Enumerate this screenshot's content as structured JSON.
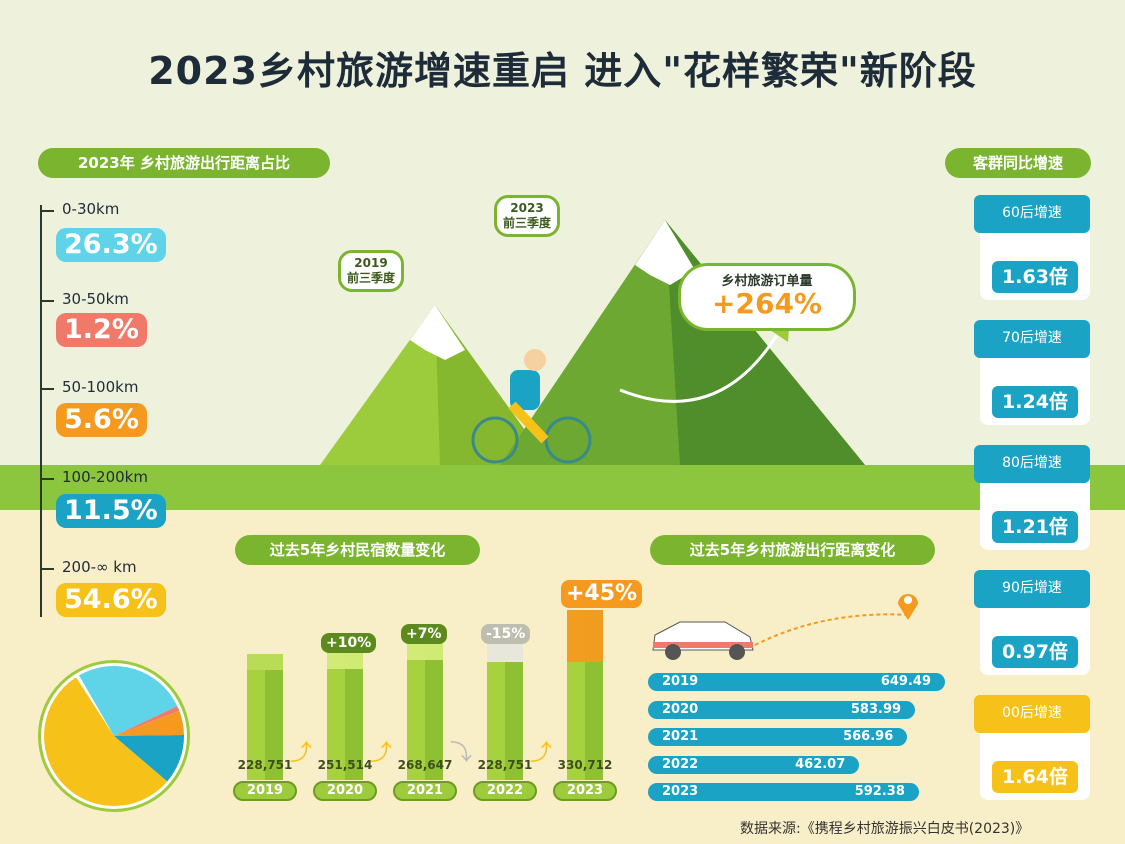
{
  "title": "2023乡村旅游增速重启  进入\"花样繁荣\"新阶段",
  "distance_share": {
    "label": "2023年 乡村旅游出行距离占比",
    "items": [
      {
        "range": "0-30km",
        "value": "26.3%",
        "pct": 26.3,
        "color": "#5fd3e8"
      },
      {
        "range": "30-50km",
        "value": "1.2%",
        "pct": 1.2,
        "color": "#f07a6a"
      },
      {
        "range": "50-100km",
        "value": "5.6%",
        "pct": 5.6,
        "color": "#f59a1e"
      },
      {
        "range": "100-200km",
        "value": "11.5%",
        "pct": 11.5,
        "color": "#1aa3c4"
      },
      {
        "range": "200-∞ km",
        "value": "54.6%",
        "pct": 54.6,
        "color": "#f6c21a"
      }
    ]
  },
  "illustration": {
    "c2019": [
      "2019",
      "前三季度"
    ],
    "c2023": [
      "2023",
      "前三季度"
    ],
    "order_label": "乡村旅游订单量",
    "order_value": "+264%"
  },
  "cohort": {
    "label": "客群同比增速",
    "items": [
      {
        "name": "60后增速",
        "value": "1.63倍",
        "color": "#1aa3c4"
      },
      {
        "name": "70后增速",
        "value": "1.24倍",
        "color": "#1aa3c4"
      },
      {
        "name": "80后增速",
        "value": "1.21倍",
        "color": "#1aa3c4"
      },
      {
        "name": "90后增速",
        "value": "0.97倍",
        "color": "#1aa3c4"
      },
      {
        "name": "00后增速",
        "value": "1.64倍",
        "color": "#f6c21a"
      }
    ]
  },
  "chart_data": [
    {
      "type": "bar",
      "title": "过去5年乡村民宿数量变化",
      "categories": [
        "2019",
        "2020",
        "2021",
        "2022",
        "2023"
      ],
      "values": [
        228751,
        251514,
        268647,
        228751,
        330712
      ],
      "labels": [
        "228,751",
        "251,514",
        "268,647",
        "228,751",
        "330,712"
      ],
      "changes": [
        "",
        "+10%",
        "+7%",
        "-15%",
        "+45%"
      ]
    },
    {
      "type": "bar",
      "orientation": "horizontal",
      "title": "过去5年乡村旅游出行距离变化",
      "categories": [
        "2019",
        "2020",
        "2021",
        "2022",
        "2023"
      ],
      "values": [
        649.49,
        583.99,
        566.96,
        462.07,
        592.38
      ],
      "labels": [
        "649.49",
        "583.99",
        "566.96",
        "462.07",
        "592.38"
      ]
    },
    {
      "type": "pie",
      "values": [
        26.3,
        1.2,
        5.6,
        11.5,
        54.6
      ],
      "categories": [
        "0-30km",
        "30-50km",
        "50-100km",
        "100-200km",
        "200-∞ km"
      ]
    }
  ],
  "source": "数据来源:《携程乡村旅游振兴白皮书(2023)》"
}
